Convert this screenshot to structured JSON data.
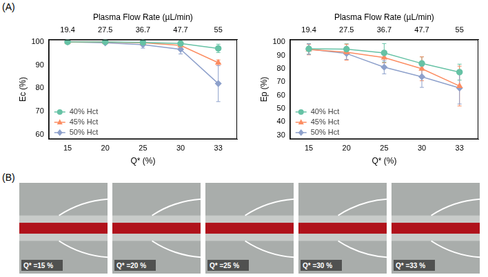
{
  "panel_labels": [
    "(A)",
    "(B)"
  ],
  "chart_data": [
    {
      "type": "line",
      "x_label": "Q* (%)",
      "x2_label": "Plasma Flow Rate (µL/min)",
      "categories": [
        "15",
        "20",
        "25",
        "30",
        "33"
      ],
      "x2_categories": [
        "19.4",
        "27.5",
        "36.7",
        "47.7",
        "55"
      ],
      "y_label": "Ec (%)",
      "ylim": [
        58,
        101
      ],
      "yticks": [
        60,
        70,
        80,
        90,
        100
      ],
      "grid": false,
      "legend": "lower left",
      "series": [
        {
          "name": "40% Hct",
          "color": "#66c2a5",
          "marker": "circle",
          "values": [
            100,
            100,
            99.8,
            99.3,
            97.2
          ],
          "errors": [
            0.2,
            0.2,
            0.3,
            0.6,
            1.8
          ]
        },
        {
          "name": "45% Hct",
          "color": "#fc8d62",
          "marker": "triangle",
          "values": [
            99.9,
            99.9,
            99.6,
            98.5,
            91
          ],
          "errors": [
            0.1,
            0.2,
            0.5,
            1,
            1.2
          ]
        },
        {
          "name": "50% Hct",
          "color": "#8da0cb",
          "marker": "diamond",
          "values": [
            100,
            99.6,
            98.8,
            96.8,
            82
          ],
          "errors": [
            0.1,
            0.5,
            1.5,
            2,
            7.8
          ]
        }
      ]
    },
    {
      "type": "line",
      "x_label": "Q* (%)",
      "x2_label": "Plasma Flow Rate (µL/min)",
      "categories": [
        "15",
        "20",
        "25",
        "30",
        "33"
      ],
      "x2_categories": [
        "19.4",
        "27.5",
        "36.7",
        "47.7",
        "55"
      ],
      "y_label": "Ep (%)",
      "ylim": [
        27,
        102
      ],
      "yticks": [
        30,
        40,
        50,
        60,
        70,
        80,
        90,
        100
      ],
      "grid": false,
      "legend": "lower left",
      "series": [
        {
          "name": "40% Hct",
          "color": "#66c2a5",
          "marker": "circle",
          "values": [
            95,
            94.8,
            92,
            84,
            77.5
          ],
          "errors": [
            4,
            4,
            7,
            5,
            6
          ]
        },
        {
          "name": "45% Hct",
          "color": "#fc8d62",
          "marker": "triangle",
          "values": [
            94.5,
            92.5,
            88.5,
            80,
            67
          ],
          "errors": [
            4,
            6,
            4,
            9,
            15
          ]
        },
        {
          "name": "50% Hct",
          "color": "#8da0cb",
          "marker": "diamond",
          "values": [
            94.8,
            91.5,
            81.2,
            74,
            65.5
          ],
          "errors": [
            4,
            4.5,
            5,
            8,
            12
          ]
        }
      ]
    }
  ],
  "images": [
    {
      "label": "Q* =15 %"
    },
    {
      "label": "Q* =20 %"
    },
    {
      "label": "Q* =25 %"
    },
    {
      "label": "Q* =30 %"
    },
    {
      "label": "Q* =33 %"
    }
  ]
}
